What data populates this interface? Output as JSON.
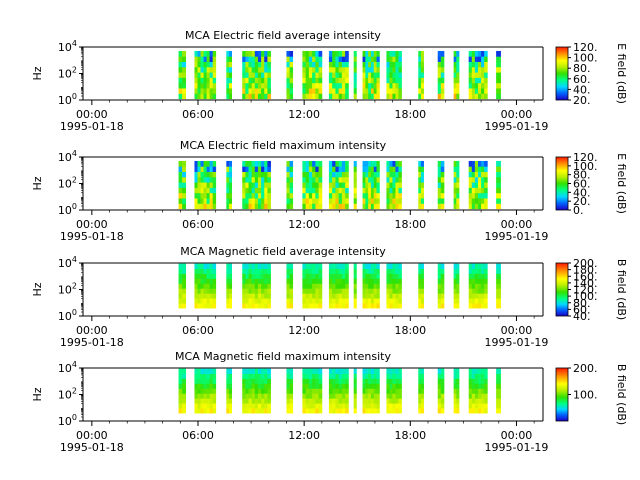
{
  "chart_data": [
    {
      "type": "heatmap",
      "title": "MCA  Electric field average intensity",
      "ylabel": "Hz",
      "ylim_exp": [
        0,
        4
      ],
      "y_ticks": [
        {
          "base": "10",
          "exp": "0",
          "e": 0
        },
        {
          "base": "10",
          "exp": "2",
          "e": 2
        },
        {
          "base": "10",
          "exp": "4",
          "e": 4
        }
      ],
      "colorbar_label": "E field (dB)",
      "colorbar_range": [
        20,
        120
      ],
      "colorbar_ticks": [
        "20.",
        "40.",
        "60.",
        "80.",
        "100.",
        "120."
      ],
      "colorbar_tick_values": [
        20,
        40,
        60,
        80,
        100,
        120
      ],
      "palette": "electric"
    },
    {
      "type": "heatmap",
      "title": "MCA  Electric field maximum intensity",
      "ylabel": "Hz",
      "ylim_exp": [
        0,
        4
      ],
      "y_ticks": [
        {
          "base": "10",
          "exp": "0",
          "e": 0
        },
        {
          "base": "10",
          "exp": "2",
          "e": 2
        },
        {
          "base": "10",
          "exp": "4",
          "e": 4
        }
      ],
      "colorbar_label": "E field (dB)",
      "colorbar_range": [
        0,
        120
      ],
      "colorbar_ticks": [
        "0.",
        "20.",
        "40.",
        "60.",
        "80.",
        "100.",
        "120."
      ],
      "colorbar_tick_values": [
        0,
        20,
        40,
        60,
        80,
        100,
        120
      ],
      "palette": "electric"
    },
    {
      "type": "heatmap",
      "title": "MCA  Magnetic field average intensity",
      "ylabel": "Hz",
      "ylim_exp": [
        0,
        4
      ],
      "y_ticks": [
        {
          "base": "10",
          "exp": "0",
          "e": 0
        },
        {
          "base": "10",
          "exp": "2",
          "e": 2
        },
        {
          "base": "10",
          "exp": "4",
          "e": 4
        }
      ],
      "colorbar_label": "B field (dB)",
      "colorbar_range": [
        40,
        200
      ],
      "colorbar_ticks": [
        "40.",
        "60.",
        "80.",
        "100.",
        "120.",
        "140.",
        "160.",
        "180.",
        "200."
      ],
      "colorbar_tick_values": [
        40,
        60,
        80,
        100,
        120,
        140,
        160,
        180,
        200
      ],
      "palette": "magnetic"
    },
    {
      "type": "heatmap",
      "title": "MCA  Magnetic field maximum intensity",
      "ylabel": "Hz",
      "ylim_exp": [
        0,
        4
      ],
      "y_ticks": [
        {
          "base": "10",
          "exp": "0",
          "e": 0
        },
        {
          "base": "10",
          "exp": "2",
          "e": 2
        },
        {
          "base": "10",
          "exp": "4",
          "e": 4
        }
      ],
      "colorbar_label": "B field (dB)",
      "colorbar_range": [
        0,
        200
      ],
      "colorbar_ticks": [
        "100.",
        "200."
      ],
      "colorbar_tick_values": [
        100,
        200
      ],
      "palette": "magnetic"
    }
  ],
  "x_axis": {
    "xlim_hours": [
      -0.5,
      25.5
    ],
    "ticks": [
      {
        "h": 0,
        "time": "00:00",
        "date": "1995-01-18"
      },
      {
        "h": 6,
        "time": "06:00",
        "date": ""
      },
      {
        "h": 12,
        "time": "12:00",
        "date": ""
      },
      {
        "h": 18,
        "time": "18:00",
        "date": ""
      },
      {
        "h": 24,
        "time": "00:00",
        "date": "1995-01-19"
      }
    ]
  },
  "data_segments_hours": [
    [
      4.9,
      5.3
    ],
    [
      5.8,
      7.0
    ],
    [
      7.6,
      7.9
    ],
    [
      8.5,
      10.1
    ],
    [
      11.0,
      11.35
    ],
    [
      11.9,
      13.0
    ],
    [
      13.4,
      14.5
    ],
    [
      14.8,
      14.95
    ],
    [
      15.3,
      16.25
    ],
    [
      16.65,
      17.5
    ],
    [
      18.45,
      18.75
    ],
    [
      19.55,
      19.9
    ],
    [
      20.45,
      20.75
    ],
    [
      21.3,
      22.35
    ],
    [
      22.85,
      23.1
    ]
  ]
}
